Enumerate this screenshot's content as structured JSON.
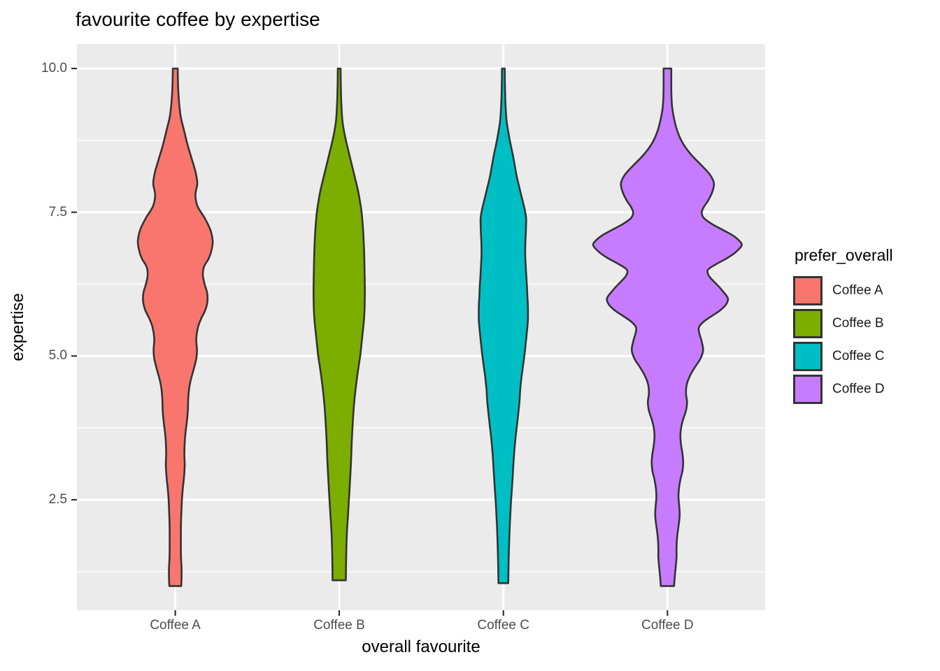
{
  "title": "favourite coffee by expertise",
  "axes": {
    "x": {
      "title": "overall favourite",
      "tick_labels": [
        "Coffee A",
        "Coffee B",
        "Coffee C",
        "Coffee D"
      ]
    },
    "y": {
      "title": "expertise",
      "ticks": [
        {
          "label": "10.0",
          "value": 10.0
        },
        {
          "label": "7.5",
          "value": 7.5
        },
        {
          "label": "5.0",
          "value": 5.0
        },
        {
          "label": "2.5",
          "value": 2.5
        }
      ],
      "minor_tick_values": [
        8.75,
        6.25,
        3.75,
        1.25
      ]
    }
  },
  "legend": {
    "title": "prefer_overall",
    "items": [
      {
        "label": "Coffee A",
        "color": "#F8766D"
      },
      {
        "label": "Coffee B",
        "color": "#7CAE00"
      },
      {
        "label": "Coffee C",
        "color": "#00BFC4"
      },
      {
        "label": "Coffee D",
        "color": "#C77CFF"
      }
    ]
  },
  "colors": {
    "panel_background": "#EBEBEB",
    "gridline": "#FFFFFF",
    "violin_outline": "#333333",
    "tick_mark": "#333333",
    "tick_label_text": "#4D4D4D",
    "title_text": "#000000"
  },
  "chart_data": {
    "type": "violin",
    "title": "favourite coffee by expertise",
    "xlabel": "overall favourite",
    "ylabel": "expertise",
    "legend_title": "prefer_overall",
    "legend_position": "right",
    "categories": [
      "Coffee A",
      "Coffee B",
      "Coffee C",
      "Coffee D"
    ],
    "y_major_ticks": [
      2.5,
      5.0,
      7.5,
      10.0
    ],
    "y_minor_ticks": [
      1.25,
      3.75,
      6.25,
      8.75
    ],
    "y_data_range": [
      1,
      10
    ],
    "y_axis_range_shown": [
      0.55,
      10.45
    ],
    "grid": "major-and-minor",
    "profile_note": "Each series is a KDE violin: pairs of [expertise_value, density_halfwidth_px]; halfwidth is perpendicular to the y axis, 82.27 px equals 1 expertise unit.",
    "series": [
      {
        "name": "Coffee A",
        "fill": "#F8766D",
        "profile": [
          [
            10,
            3.5
          ],
          [
            9.7,
            4
          ],
          [
            9.4,
            5.5
          ],
          [
            9.15,
            8
          ],
          [
            8.95,
            12
          ],
          [
            8.7,
            17
          ],
          [
            8.45,
            23
          ],
          [
            8.2,
            29
          ],
          [
            8.0,
            31.5
          ],
          [
            7.8,
            28.8
          ],
          [
            7.6,
            32
          ],
          [
            7.4,
            42
          ],
          [
            7.2,
            50
          ],
          [
            7.0,
            53.5
          ],
          [
            6.85,
            52
          ],
          [
            6.7,
            48
          ],
          [
            6.55,
            41
          ],
          [
            6.4,
            39.5
          ],
          [
            6.25,
            42
          ],
          [
            6.1,
            45.5
          ],
          [
            5.95,
            46
          ],
          [
            5.8,
            43
          ],
          [
            5.65,
            37
          ],
          [
            5.5,
            32.5
          ],
          [
            5.3,
            30
          ],
          [
            5.1,
            31
          ],
          [
            4.95,
            30
          ],
          [
            4.8,
            27
          ],
          [
            4.6,
            22.5
          ],
          [
            4.45,
            20
          ],
          [
            4.25,
            18.5
          ],
          [
            4.05,
            18
          ],
          [
            3.85,
            16.5
          ],
          [
            3.65,
            14.5
          ],
          [
            3.5,
            13.5
          ],
          [
            3.3,
            13
          ],
          [
            3.1,
            13.5
          ],
          [
            2.9,
            12.5
          ],
          [
            2.7,
            10.8
          ],
          [
            2.5,
            9.5
          ],
          [
            2.3,
            8.8
          ],
          [
            2.1,
            8.2
          ],
          [
            1.9,
            8
          ],
          [
            1.7,
            8
          ],
          [
            1.5,
            8.2
          ],
          [
            1.3,
            9
          ],
          [
            1.15,
            9
          ],
          [
            1.0,
            8.5
          ]
        ]
      },
      {
        "name": "Coffee B",
        "fill": "#7CAE00",
        "profile": [
          [
            10,
            2
          ],
          [
            9.7,
            2.3
          ],
          [
            9.4,
            3
          ],
          [
            9.1,
            4.5
          ],
          [
            8.9,
            7
          ],
          [
            8.7,
            10.5
          ],
          [
            8.5,
            14.5
          ],
          [
            8.3,
            18.5
          ],
          [
            8.1,
            22.5
          ],
          [
            7.9,
            26.5
          ],
          [
            7.7,
            29.5
          ],
          [
            7.5,
            32
          ],
          [
            7.25,
            33.8
          ],
          [
            7.0,
            35
          ],
          [
            6.75,
            35.8
          ],
          [
            6.5,
            36.2
          ],
          [
            6.25,
            36.6
          ],
          [
            6.0,
            36.6
          ],
          [
            5.8,
            36.2
          ],
          [
            5.6,
            35.2
          ],
          [
            5.4,
            33.5
          ],
          [
            5.2,
            31.8
          ],
          [
            5.0,
            30
          ],
          [
            4.8,
            27.5
          ],
          [
            4.6,
            25.2
          ],
          [
            4.4,
            23.2
          ],
          [
            4.2,
            21.5
          ],
          [
            4.0,
            20.2
          ],
          [
            3.8,
            19.2
          ],
          [
            3.6,
            18.3
          ],
          [
            3.4,
            17.6
          ],
          [
            3.2,
            17
          ],
          [
            3.0,
            16.2
          ],
          [
            2.8,
            15.3
          ],
          [
            2.6,
            14.4
          ],
          [
            2.4,
            13.4
          ],
          [
            2.2,
            12.4
          ],
          [
            2.0,
            11.3
          ],
          [
            1.8,
            10.6
          ],
          [
            1.6,
            10.1
          ],
          [
            1.4,
            9.8
          ],
          [
            1.25,
            9.6
          ],
          [
            1.1,
            9.5
          ]
        ]
      },
      {
        "name": "Coffee C",
        "fill": "#00BFC4",
        "profile": [
          [
            10,
            2
          ],
          [
            9.7,
            2.3
          ],
          [
            9.4,
            3
          ],
          [
            9.1,
            4.5
          ],
          [
            8.9,
            7
          ],
          [
            8.7,
            10
          ],
          [
            8.5,
            13.5
          ],
          [
            8.3,
            16.5
          ],
          [
            8.1,
            19.5
          ],
          [
            7.9,
            23.5
          ],
          [
            7.7,
            27.5
          ],
          [
            7.55,
            30.5
          ],
          [
            7.4,
            32.5
          ],
          [
            7.25,
            32.4
          ],
          [
            7.1,
            32
          ],
          [
            6.95,
            31.4
          ],
          [
            6.8,
            31.2
          ],
          [
            6.65,
            31.6
          ],
          [
            6.5,
            32.3
          ],
          [
            6.35,
            33
          ],
          [
            6.2,
            33.8
          ],
          [
            6.05,
            34.3
          ],
          [
            5.9,
            35
          ],
          [
            5.75,
            35.2
          ],
          [
            5.6,
            35
          ],
          [
            5.4,
            33.5
          ],
          [
            5.2,
            31.8
          ],
          [
            5.0,
            30
          ],
          [
            4.8,
            27.8
          ],
          [
            4.6,
            25.6
          ],
          [
            4.4,
            24
          ],
          [
            4.2,
            23
          ],
          [
            4.0,
            21.3
          ],
          [
            3.8,
            19.5
          ],
          [
            3.6,
            17.6
          ],
          [
            3.4,
            16
          ],
          [
            3.2,
            14.8
          ],
          [
            3.0,
            13.8
          ],
          [
            2.8,
            12.8
          ],
          [
            2.6,
            11.7
          ],
          [
            2.4,
            10.6
          ],
          [
            2.2,
            9.8
          ],
          [
            2.0,
            9
          ],
          [
            1.8,
            8.4
          ],
          [
            1.6,
            7.9
          ],
          [
            1.4,
            7.5
          ],
          [
            1.2,
            7.2
          ],
          [
            1.05,
            7
          ]
        ]
      },
      {
        "name": "Coffee D",
        "fill": "#C77CFF",
        "profile": [
          [
            10,
            5.5
          ],
          [
            9.75,
            5.5
          ],
          [
            9.5,
            5.8
          ],
          [
            9.3,
            7
          ],
          [
            9.1,
            10
          ],
          [
            8.9,
            14.5
          ],
          [
            8.7,
            22
          ],
          [
            8.5,
            34
          ],
          [
            8.3,
            50
          ],
          [
            8.15,
            61
          ],
          [
            8.0,
            66.5
          ],
          [
            7.85,
            64
          ],
          [
            7.7,
            58
          ],
          [
            7.6,
            52.5
          ],
          [
            7.5,
            49
          ],
          [
            7.4,
            52
          ],
          [
            7.3,
            63
          ],
          [
            7.2,
            78
          ],
          [
            7.1,
            93
          ],
          [
            7.0,
            103
          ],
          [
            6.92,
            106
          ],
          [
            6.8,
            97
          ],
          [
            6.7,
            85
          ],
          [
            6.6,
            70
          ],
          [
            6.5,
            58
          ],
          [
            6.4,
            59
          ],
          [
            6.3,
            66
          ],
          [
            6.2,
            74
          ],
          [
            6.1,
            81
          ],
          [
            6.0,
            86.5
          ],
          [
            5.9,
            84
          ],
          [
            5.8,
            76
          ],
          [
            5.7,
            64
          ],
          [
            5.6,
            52
          ],
          [
            5.5,
            45
          ],
          [
            5.4,
            45.5
          ],
          [
            5.25,
            49
          ],
          [
            5.1,
            51
          ],
          [
            4.95,
            47
          ],
          [
            4.8,
            39
          ],
          [
            4.65,
            32
          ],
          [
            4.5,
            27.5
          ],
          [
            4.35,
            26.5
          ],
          [
            4.2,
            28
          ],
          [
            4.05,
            26.5
          ],
          [
            3.9,
            22.5
          ],
          [
            3.75,
            19.5
          ],
          [
            3.6,
            18.5
          ],
          [
            3.45,
            19.5
          ],
          [
            3.3,
            21.5
          ],
          [
            3.15,
            22.5
          ],
          [
            3.0,
            21.5
          ],
          [
            2.85,
            18.5
          ],
          [
            2.7,
            16.5
          ],
          [
            2.55,
            15.8
          ],
          [
            2.4,
            16.8
          ],
          [
            2.25,
            17.5
          ],
          [
            2.1,
            16.5
          ],
          [
            1.95,
            14.8
          ],
          [
            1.8,
            13.5
          ],
          [
            1.65,
            13
          ],
          [
            1.5,
            13
          ],
          [
            1.35,
            12
          ],
          [
            1.2,
            10.8
          ],
          [
            1.05,
            9.8
          ],
          [
            1.0,
            9.5
          ]
        ]
      }
    ]
  }
}
